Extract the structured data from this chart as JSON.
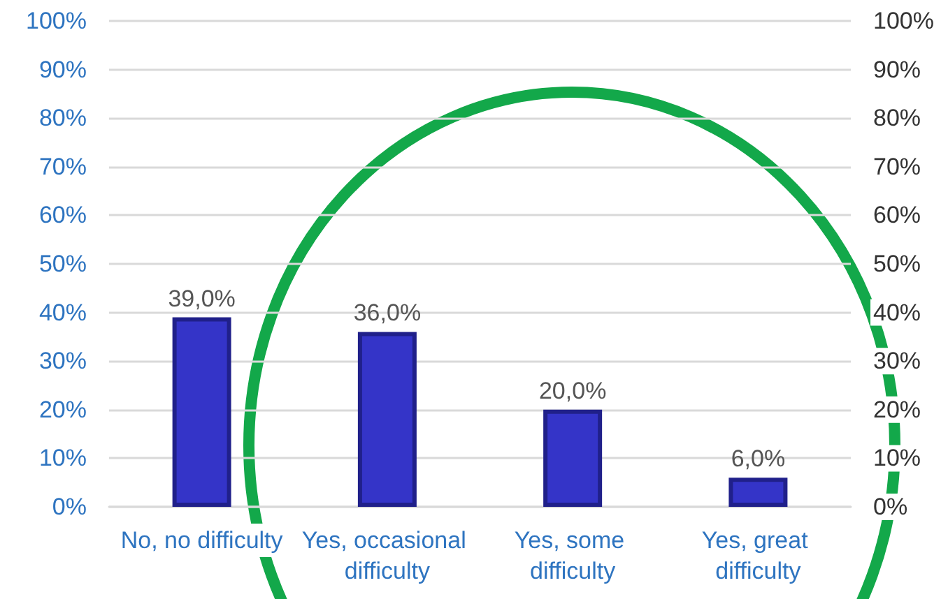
{
  "chart_data": {
    "type": "bar",
    "categories": [
      "No, no difficulty",
      "Yes, occasional difficulty",
      "Yes, some difficulty",
      "Yes, great difficulty"
    ],
    "values": [
      39,
      36,
      20,
      6
    ],
    "value_labels": [
      "39,0%",
      "36,0%",
      "20,0%",
      "6,0%"
    ],
    "color": "#3434c8",
    "ylim": [
      0,
      100
    ],
    "yticks": [
      {
        "value": 0,
        "label": "0%"
      },
      {
        "value": 10,
        "label": "10%"
      },
      {
        "value": 20,
        "label": "20%"
      },
      {
        "value": 30,
        "label": "30%"
      },
      {
        "value": 40,
        "label": "40%"
      },
      {
        "value": 50,
        "label": "50%"
      },
      {
        "value": 60,
        "label": "60%"
      },
      {
        "value": 70,
        "label": "70%"
      },
      {
        "value": 80,
        "label": "80%"
      },
      {
        "value": 90,
        "label": "90%"
      },
      {
        "value": 100,
        "label": "100%"
      }
    ],
    "y2lim": [
      0,
      100
    ],
    "y2ticks": [
      {
        "value": 0,
        "label": "0%"
      },
      {
        "value": 10,
        "label": "10%"
      },
      {
        "value": 20,
        "label": "20%"
      },
      {
        "value": 30,
        "label": "30%"
      },
      {
        "value": 40,
        "label": "40%"
      },
      {
        "value": 50,
        "label": "50%"
      },
      {
        "value": 60,
        "label": "60%"
      },
      {
        "value": 70,
        "label": "70%"
      },
      {
        "value": 80,
        "label": "80%"
      },
      {
        "value": 90,
        "label": "90%"
      },
      {
        "value": 100,
        "label": "100%"
      }
    ],
    "grid": "y"
  }
}
